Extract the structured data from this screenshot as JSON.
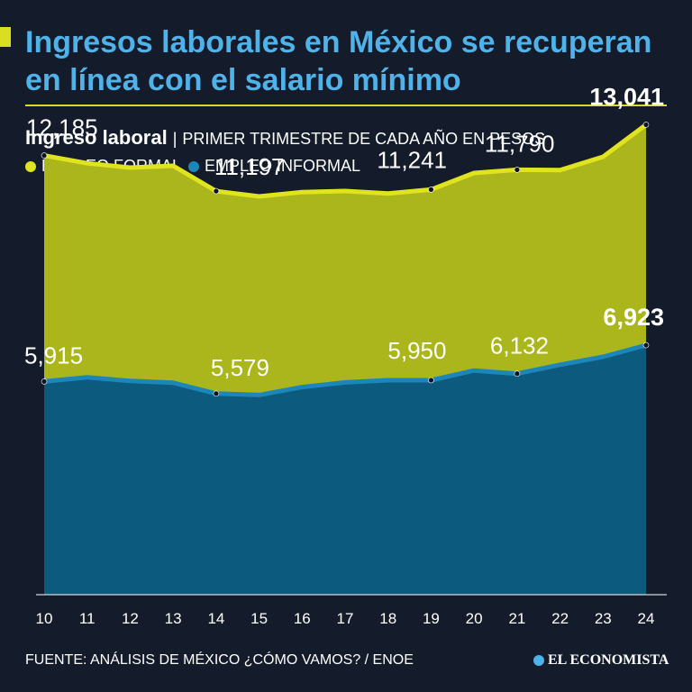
{
  "title": "Ingresos laborales en México se recuperan en línea con el salario mínimo",
  "subtitle": {
    "strong": "Ingreso laboral",
    "separator": "|",
    "rest": "PRIMER TRIMESTRE DE CADA AÑO EN PESOS"
  },
  "legend": {
    "formal": "EMPLEO FORMAL",
    "informal": "EMPLEO INFORMAL"
  },
  "footer": {
    "source": "FUENTE: ANÁLISIS DE MÉXICO ¿CÓMO VAMOS? / ENOE",
    "logo": "EL ECONOMISTA"
  },
  "colors": {
    "background": "#141c2c",
    "title": "#4fb2e8",
    "formal_line": "#dfe41e",
    "formal_area": "#aab61c",
    "informal_line": "#1d86b8",
    "informal_area": "#0c5a7d"
  },
  "chart_data": {
    "type": "area",
    "title": "Ingreso laboral",
    "xlabel": "",
    "ylabel": "Pesos",
    "ylim": [
      0,
      13500
    ],
    "categories": [
      "10",
      "11",
      "12",
      "13",
      "14",
      "15",
      "16",
      "17",
      "18",
      "19",
      "20",
      "21",
      "22",
      "23",
      "24"
    ],
    "series": [
      {
        "name": "EMPLEO FORMAL",
        "values": [
          12185,
          11970,
          11850,
          11900,
          11197,
          11050,
          11170,
          11200,
          11130,
          11241,
          11700,
          11790,
          11780,
          12150,
          13041
        ],
        "labels": [
          {
            "index": 0,
            "text": "12,185",
            "bold": false
          },
          {
            "index": 4,
            "text": "11,197",
            "bold": false
          },
          {
            "index": 9,
            "text": "11,241",
            "bold": false
          },
          {
            "index": 11,
            "text": "11,790",
            "bold": false
          },
          {
            "index": 14,
            "text": "13,041",
            "bold": true
          }
        ]
      },
      {
        "name": "EMPLEO INFORMAL",
        "values": [
          5915,
          6030,
          5930,
          5880,
          5579,
          5540,
          5760,
          5890,
          5950,
          5950,
          6220,
          6132,
          6380,
          6600,
          6923
        ],
        "labels": [
          {
            "index": 0,
            "text": "5,915",
            "bold": false
          },
          {
            "index": 4,
            "text": "5,579",
            "bold": false
          },
          {
            "index": 9,
            "text": "5,950",
            "bold": false
          },
          {
            "index": 11,
            "text": "6,132",
            "bold": false
          },
          {
            "index": 14,
            "text": "6,923",
            "bold": true
          }
        ]
      }
    ]
  }
}
